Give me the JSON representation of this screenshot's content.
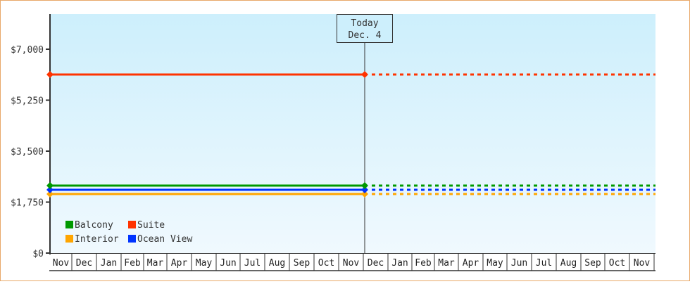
{
  "chart_data": {
    "type": "line",
    "title": "",
    "xlabel": "",
    "ylabel": "",
    "ylim": [
      0,
      8200
    ],
    "yticks": [
      {
        "value": 0,
        "label": "$0"
      },
      {
        "value": 1750,
        "label": "$1,750"
      },
      {
        "value": 3500,
        "label": "$3,500"
      },
      {
        "value": 5250,
        "label": "$5,250"
      },
      {
        "value": 7000,
        "label": "$7,000"
      }
    ],
    "categories": [
      "Nov",
      "Dec",
      "Jan",
      "Feb",
      "Mar",
      "Apr",
      "May",
      "Jun",
      "Jul",
      "Aug",
      "Sep",
      "Oct",
      "Nov",
      "Dec",
      "Jan",
      "Feb",
      "Mar",
      "Apr",
      "May",
      "Jun",
      "Jul",
      "Aug",
      "Sep",
      "Oct",
      "Nov"
    ],
    "today_marker": {
      "line1": "Today",
      "line2": "Dec. 4",
      "category_index": 13
    },
    "series": [
      {
        "name": "Suite",
        "color": "#ff3300",
        "value": 6130,
        "historical": "solid",
        "projected": "dotted"
      },
      {
        "name": "Balcony",
        "color": "#009900",
        "value": 2320,
        "historical": "solid",
        "projected": "dotted"
      },
      {
        "name": "Ocean View",
        "color": "#0033ff",
        "value": 2170,
        "historical": "solid",
        "projected": "dotted"
      },
      {
        "name": "Interior",
        "color": "#ffa500",
        "value": 2030,
        "historical": "solid",
        "projected": "dotted"
      }
    ],
    "legend": {
      "position": "bottom-left inside",
      "entries": [
        {
          "label": "Balcony",
          "color": "#009900"
        },
        {
          "label": "Suite",
          "color": "#ff3300"
        },
        {
          "label": "Interior",
          "color": "#ffa500"
        },
        {
          "label": "Ocean View",
          "color": "#0033ff"
        }
      ]
    },
    "grid": false
  },
  "colors": {
    "border": "#e8a868",
    "plot_top": "#cdeffc",
    "plot_bottom": "#f0f9fe",
    "axis": "#333333"
  }
}
